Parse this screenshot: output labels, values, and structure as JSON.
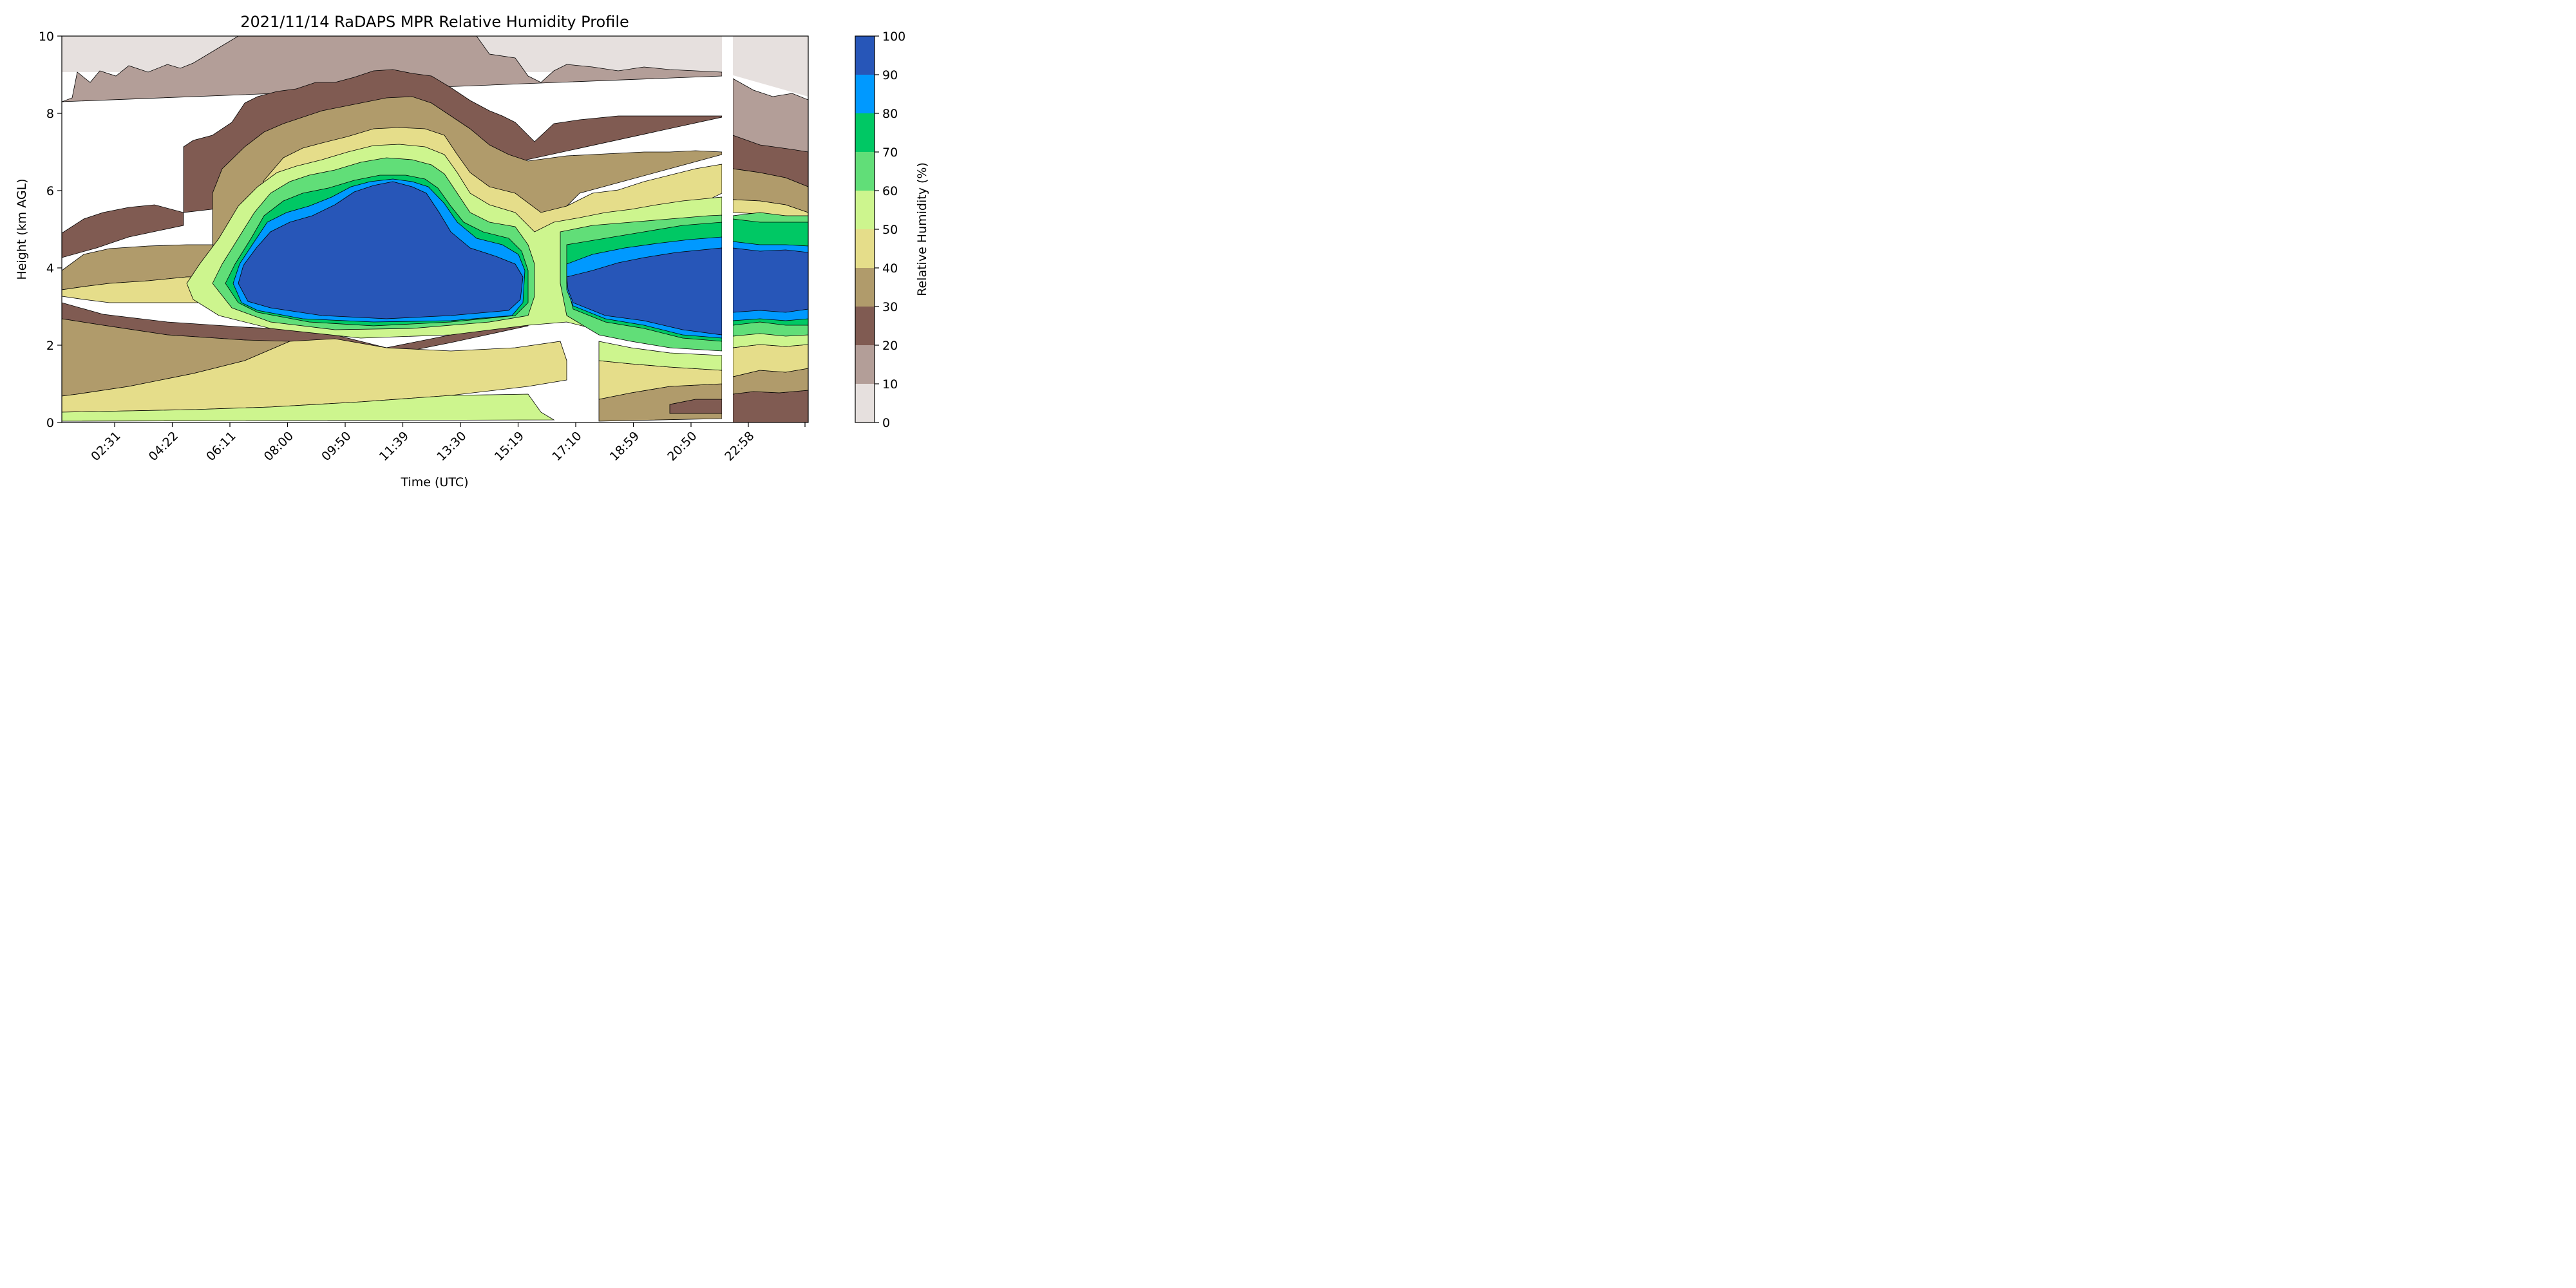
{
  "chart_data": {
    "type": "contour",
    "title": "2021/11/14 RaDAPS MPR Relative Humidity Profile",
    "xlabel": "Time (UTC)",
    "ylabel": "Height (km AGL)",
    "ylim": [
      0,
      10
    ],
    "y_ticks": [
      "0",
      "2",
      "4",
      "6",
      "8",
      "10"
    ],
    "x_ticks": [
      "02:31",
      "04:22",
      "06:11",
      "08:00",
      "09:50",
      "11:39",
      "13:30",
      "15:19",
      "17:10",
      "18:59",
      "20:50",
      "22:58"
    ],
    "colorbar": {
      "label": "Relative Humidity (%)",
      "ticks": [
        "0",
        "10",
        "20",
        "30",
        "40",
        "50",
        "60",
        "70",
        "80",
        "90",
        "100"
      ],
      "levels": [
        {
          "from": 0,
          "to": 10,
          "color": "#e6e0de"
        },
        {
          "from": 10,
          "to": 20,
          "color": "#b39e98"
        },
        {
          "from": 20,
          "to": 30,
          "color": "#805b52"
        },
        {
          "from": 30,
          "to": 40,
          "color": "#b09b6b"
        },
        {
          "from": 40,
          "to": 50,
          "color": "#e5dd8a"
        },
        {
          "from": 50,
          "to": 60,
          "color": "#cdf58e"
        },
        {
          "from": 60,
          "to": 70,
          "color": "#61de78"
        },
        {
          "from": 70,
          "to": 80,
          "color": "#00c864"
        },
        {
          "from": 80,
          "to": 90,
          "color": "#0099ff"
        },
        {
          "from": 90,
          "to": 100,
          "color": "#2756b8"
        }
      ]
    },
    "layers_summary": [
      {
        "rh": "0-20",
        "height_km": [
          8.3,
          10
        ],
        "note": "dry upper layer, all day"
      },
      {
        "rh": "20-40",
        "height_km": [
          6.5,
          9.0
        ],
        "time": "05:00-14:30"
      },
      {
        "rh": ">90",
        "height_km": [
          2.4,
          6.3
        ],
        "time": "06:40-15:30",
        "note": "saturated cloud layer, peak near 11:39"
      },
      {
        "rh": ">90",
        "height_km": [
          2.3,
          4.6
        ],
        "time": "17:00-23:55",
        "note": "second saturated layer"
      },
      {
        "rh": "40-60",
        "height_km": [
          0,
          2.0
        ],
        "note": "boundary layer"
      },
      {
        "rh": "no data",
        "time": "21:53-22:15",
        "note": "data gap"
      }
    ]
  }
}
